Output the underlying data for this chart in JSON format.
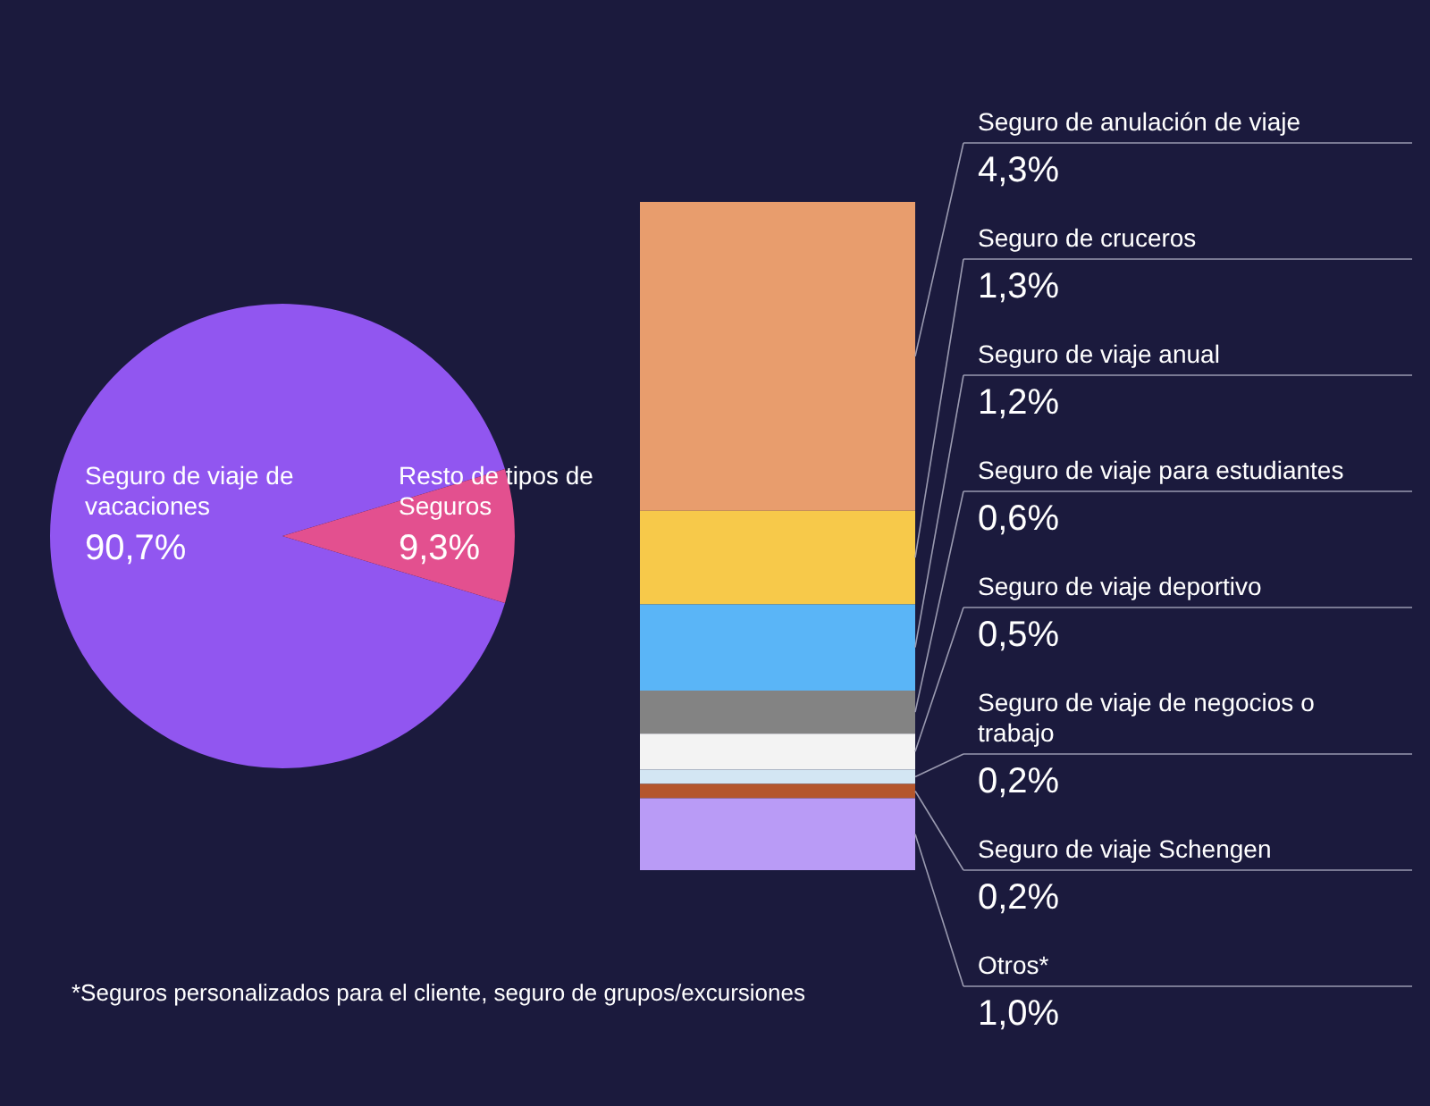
{
  "chart_data": [
    {
      "type": "pie",
      "categories": [
        "Seguro de viaje de vacaciones",
        "Resto de tipos de Seguros"
      ],
      "values": [
        90.7,
        9.3
      ],
      "value_labels": [
        "90,7%",
        "9,3%"
      ],
      "colors": [
        "#9156f0",
        "#e3508f"
      ],
      "annotations": [
        "*Seguros personalizados para el cliente, seguro de grupos/excursiones"
      ]
    },
    {
      "type": "bar",
      "stacked": true,
      "categories": [
        null
      ],
      "series": [
        {
          "name": "Otros*",
          "color": "#b99bf6",
          "values": [
            1.0
          ],
          "value_labels": [
            "1,0%"
          ]
        },
        {
          "name": "Seguro de viaje Schengen",
          "color": "#b4562c",
          "values": [
            0.2
          ],
          "value_labels": [
            "0,2%"
          ]
        },
        {
          "name": "Seguro de viaje de negocios o trabajo",
          "color": "#d3e6f3",
          "values": [
            0.2
          ],
          "value_labels": [
            "0,2%"
          ]
        },
        {
          "name": "Seguro de viaje deportivo",
          "color": "#f3f3f3",
          "values": [
            0.5
          ],
          "value_labels": [
            "0,5%"
          ]
        },
        {
          "name": "Seguro de viaje para estudiantes",
          "color": "#838383",
          "values": [
            0.6
          ],
          "value_labels": [
            "0,6%"
          ]
        },
        {
          "name": "Seguro de viaje anual",
          "color": "#5ab5f7",
          "values": [
            1.2
          ],
          "value_labels": [
            "1,2%"
          ]
        },
        {
          "name": "Seguro de cruceros",
          "color": "#f7c94a",
          "values": [
            1.3
          ],
          "value_labels": [
            "1,3%"
          ]
        },
        {
          "name": "Seguro de anulación de viaje",
          "color": "#e89d6d",
          "values": [
            4.3
          ],
          "value_labels": [
            "4,3%"
          ]
        }
      ]
    }
  ]
}
